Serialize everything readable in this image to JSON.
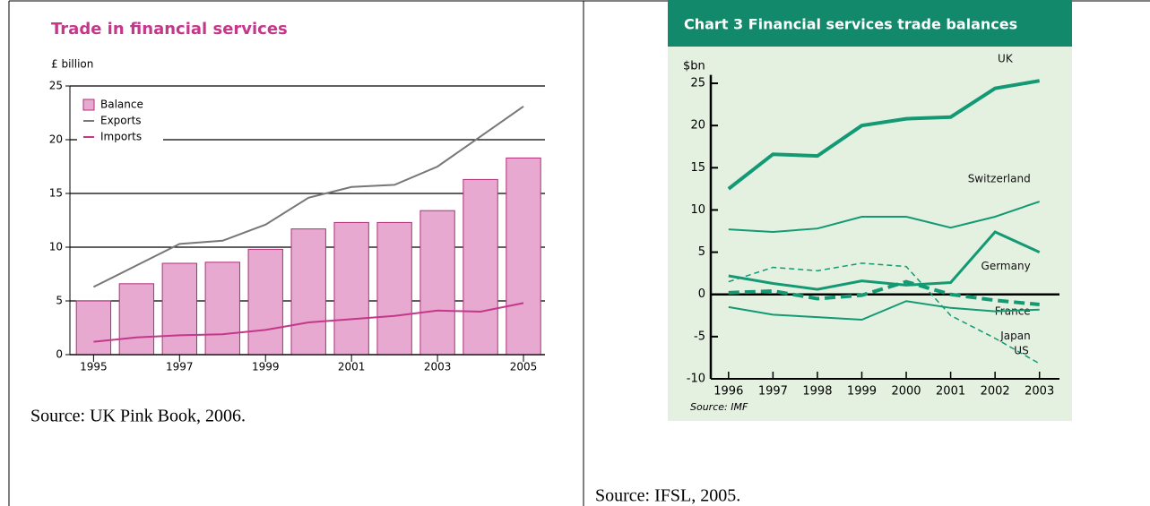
{
  "chart_data": [
    {
      "type": "bar",
      "title": "Trade in financial services",
      "y_label": "£ billion",
      "x": [
        1995,
        1996,
        1997,
        1998,
        1999,
        2000,
        2001,
        2002,
        2003,
        2004,
        2005
      ],
      "xlim": [
        1994.45,
        2005.5
      ],
      "xticks": [
        1995,
        1997,
        1999,
        2001,
        2003,
        2005
      ],
      "ylim": [
        0,
        25
      ],
      "yticks": [
        0,
        5,
        10,
        15,
        20,
        25
      ],
      "grid": true,
      "legend": "top-left",
      "series": [
        {
          "name": "Balance",
          "type": "bar",
          "color": "#e7a9cf",
          "values": [
            5.0,
            6.6,
            8.5,
            8.6,
            9.8,
            11.7,
            12.3,
            12.3,
            13.4,
            16.3,
            18.3
          ]
        },
        {
          "name": "Exports",
          "type": "line",
          "color": "#777777",
          "values": [
            6.3,
            8.3,
            10.3,
            10.6,
            12.1,
            14.6,
            15.6,
            15.8,
            17.5,
            20.3,
            23.1
          ]
        },
        {
          "name": "Imports",
          "type": "line",
          "color": "#c4378a",
          "values": [
            1.2,
            1.6,
            1.8,
            1.9,
            2.3,
            3.0,
            3.3,
            3.6,
            4.1,
            4.0,
            4.8
          ]
        }
      ]
    },
    {
      "type": "line",
      "title": "Chart 3  Financial services trade balances",
      "y_label": "$bn",
      "source": "Source: IMF",
      "x": [
        1996,
        1997,
        1998,
        1999,
        2000,
        2001,
        2002,
        2003
      ],
      "xlim": [
        1995.6,
        2003.45
      ],
      "xticks": [
        1996,
        1997,
        1998,
        1999,
        2000,
        2001,
        2002,
        2003
      ],
      "ylim": [
        -10,
        26
      ],
      "yticks": [
        -10,
        -5,
        0,
        5,
        10,
        15,
        20,
        25
      ],
      "grid": false,
      "series": [
        {
          "name": "UK",
          "color": "#139a74",
          "width": 4,
          "dash": false,
          "values": [
            12.5,
            16.6,
            16.4,
            20.0,
            20.8,
            21.0,
            24.4,
            25.3
          ]
        },
        {
          "name": "Switzerland",
          "color": "#139a74",
          "width": 2,
          "dash": false,
          "values": [
            7.7,
            7.4,
            7.8,
            9.2,
            9.2,
            7.9,
            9.2,
            11.0
          ]
        },
        {
          "name": "Germany",
          "color": "#139a74",
          "width": 3,
          "dash": false,
          "values": [
            2.2,
            1.3,
            0.6,
            1.6,
            1.1,
            1.4,
            7.4,
            5.0
          ]
        },
        {
          "name": "France",
          "color": "#139a74",
          "width": 4,
          "dash": true,
          "values": [
            0.2,
            0.4,
            -0.5,
            -0.1,
            1.5,
            0.0,
            -0.7,
            -1.2
          ]
        },
        {
          "name": "Japan",
          "color": "#139a74",
          "width": 2,
          "dash": false,
          "values": [
            -1.5,
            -2.4,
            -2.7,
            -3.0,
            -0.8,
            -1.6,
            -2.0,
            -1.8
          ]
        },
        {
          "name": "US",
          "color": "#139a74",
          "width": 1.5,
          "dash": true,
          "values": [
            1.5,
            3.2,
            2.8,
            3.7,
            3.3,
            -2.5,
            -5.2,
            -8.2
          ]
        }
      ]
    }
  ],
  "captions": [
    "Source: UK Pink Book, 2006.",
    "Source: IFSL, 2005."
  ]
}
